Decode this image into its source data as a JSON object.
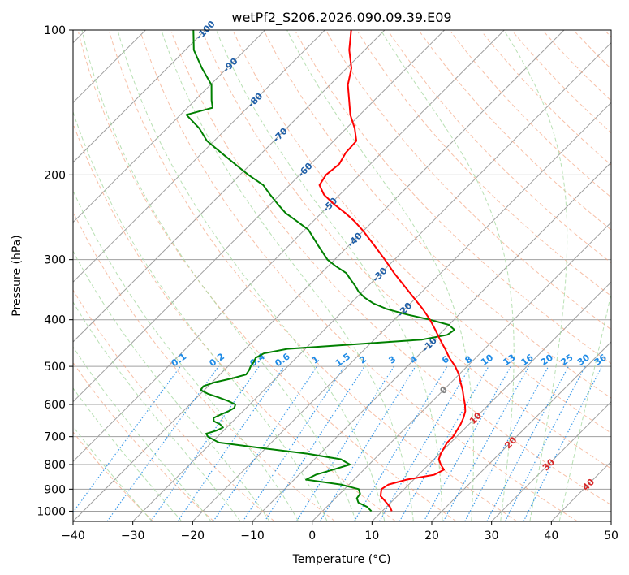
{
  "chart_data": {
    "type": "line",
    "subtype": "skew-T log-P diagram",
    "title": "wetPf2_S206.2026.090.09.39.E09",
    "xlabel": "Temperature (°C)",
    "ylabel": "Pressure (hPa)",
    "xlim": [
      -40,
      50
    ],
    "ylim": [
      1050,
      100
    ],
    "y_scale": "log",
    "grid": true,
    "x_ticks": [
      -40,
      -30,
      -20,
      -10,
      0,
      10,
      20,
      30,
      40,
      50
    ],
    "x_tick_labels": [
      "−40",
      "−30",
      "−20",
      "−10",
      "0",
      "10",
      "20",
      "30",
      "40",
      "50"
    ],
    "y_ticks": [
      100,
      200,
      300,
      400,
      500,
      600,
      700,
      800,
      900,
      1000
    ],
    "y_tick_labels": [
      "100",
      "200",
      "300",
      "400",
      "500",
      "600",
      "700",
      "800",
      "900",
      "1000"
    ],
    "colors": {
      "temperature": "#ff0000",
      "dewpoint": "#008000",
      "isotherm": "#a0a0a0",
      "dry_adiabat": "#f4a582",
      "moist_adiabat": "#a6d8a0",
      "mixing_ratio": "#1f8be6",
      "isotherm_label_cold": "#1f5fa8",
      "isotherm_label_warm": "#d62728",
      "isotherm_label_zero": "#808080",
      "outer_arc": "#d2b48c"
    },
    "series": [
      {
        "key": "temperature",
        "p": [
          1000,
          980,
          950,
          930,
          900,
          880,
          860,
          840,
          820,
          800,
          780,
          760,
          740,
          720,
          700,
          680,
          660,
          640,
          620,
          600,
          580,
          560,
          540,
          520,
          500,
          480,
          460,
          440,
          420,
          400,
          380,
          360,
          340,
          320,
          300,
          280,
          260,
          250,
          240,
          230,
          220,
          210,
          200,
          190,
          180,
          170,
          160,
          150,
          140,
          130,
          120,
          110,
          100
        ],
        "t": [
          11.6,
          10.6,
          8.6,
          7.2,
          6.2,
          6.6,
          8.8,
          12.6,
          13.4,
          12.0,
          10.8,
          10.2,
          9.8,
          9.4,
          9.4,
          9.0,
          8.6,
          8.0,
          7.2,
          6.0,
          4.6,
          3.2,
          1.6,
          0.0,
          -2.0,
          -4.4,
          -6.6,
          -9.0,
          -11.4,
          -14.0,
          -17.0,
          -20.4,
          -24.0,
          -27.8,
          -31.6,
          -35.8,
          -40.4,
          -43.0,
          -46.0,
          -49.4,
          -52.6,
          -55.0,
          -55.6,
          -55.2,
          -56.0,
          -56.2,
          -58.6,
          -61.6,
          -64.2,
          -67.0,
          -69.2,
          -72.6,
          -75.6
        ]
      },
      {
        "key": "dewpoint",
        "p": [
          1000,
          980,
          960,
          940,
          920,
          900,
          880,
          860,
          840,
          820,
          800,
          780,
          760,
          740,
          720,
          700,
          690,
          680,
          670,
          660,
          650,
          640,
          630,
          620,
          610,
          600,
          590,
          580,
          570,
          560,
          550,
          540,
          530,
          520,
          510,
          500,
          490,
          480,
          470,
          460,
          450,
          440,
          430,
          420,
          410,
          400,
          390,
          380,
          370,
          360,
          350,
          340,
          330,
          320,
          310,
          300,
          280,
          260,
          250,
          240,
          230,
          220,
          210,
          200,
          190,
          180,
          170,
          160,
          150,
          145,
          140,
          130,
          120,
          110,
          100
        ],
        "t": [
          8.2,
          6.8,
          4.6,
          3.6,
          3.4,
          2.4,
          -1.4,
          -8.0,
          -7.2,
          -5.2,
          -3.2,
          -5.6,
          -12.0,
          -20.4,
          -28.8,
          -31.6,
          -32.4,
          -31.2,
          -30.6,
          -31.6,
          -33.2,
          -33.8,
          -33.2,
          -32.4,
          -32.0,
          -32.4,
          -34.2,
          -36.4,
          -38.8,
          -40.6,
          -40.8,
          -39.6,
          -37.4,
          -35.6,
          -35.8,
          -36.2,
          -36.4,
          -36.8,
          -36.2,
          -33.0,
          -22.6,
          -12.0,
          -8.6,
          -8.2,
          -10.0,
          -14.0,
          -18.8,
          -23.0,
          -26.2,
          -28.6,
          -30.6,
          -32.2,
          -34.0,
          -35.8,
          -38.6,
          -41.2,
          -45.2,
          -49.4,
          -52.6,
          -56.0,
          -58.8,
          -61.6,
          -64.4,
          -68.6,
          -72.6,
          -76.8,
          -81.2,
          -84.6,
          -89.0,
          -85.8,
          -87.2,
          -89.8,
          -94.2,
          -98.6,
          -102.0
        ]
      }
    ],
    "isotherm_labels": [
      "-100",
      "-90",
      "-80",
      "-70",
      "-60",
      "-50",
      "-40",
      "-30",
      "-20",
      "-10",
      "0",
      "10",
      "20",
      "30",
      "40"
    ],
    "mixing_ratio_labels": [
      "0.1",
      "0.2",
      "0.4",
      "0.6",
      "1",
      "1.5",
      "2",
      "3",
      "4",
      "6",
      "8",
      "10",
      "13",
      "16",
      "20",
      "25",
      "30",
      "36"
    ]
  }
}
